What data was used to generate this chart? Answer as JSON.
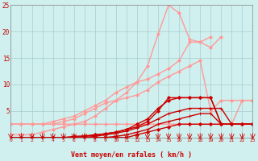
{
  "title": "",
  "xlabel": "Vent moyen/en rafales ( km/h )",
  "bg_color": "#cff0ee",
  "grid_color": "#aacccc",
  "xlim": [
    0,
    23
  ],
  "ylim": [
    0,
    25
  ],
  "yticks": [
    5,
    10,
    15,
    20,
    25
  ],
  "xticks": [
    0,
    1,
    2,
    3,
    4,
    5,
    6,
    7,
    8,
    9,
    10,
    11,
    12,
    13,
    14,
    15,
    16,
    17,
    18,
    19,
    20,
    21,
    22,
    23
  ],
  "series": [
    {
      "x": [
        0,
        1,
        2,
        3,
        4,
        5,
        6,
        7,
        8,
        9,
        10,
        11,
        12,
        13,
        14,
        15,
        16,
        17,
        18,
        19,
        20,
        21,
        22,
        23
      ],
      "y": [
        0.5,
        0.5,
        0.5,
        1.0,
        1.5,
        2.0,
        2.5,
        3.0,
        4.0,
        5.5,
        7.0,
        8.5,
        10.5,
        13.5,
        19.5,
        25.0,
        23.5,
        18.5,
        18.0,
        19.0,
        null,
        null,
        null,
        null
      ],
      "color": "#ff9999",
      "lw": 1.0,
      "marker": "D",
      "ms": 2
    },
    {
      "x": [
        0,
        1,
        2,
        3,
        4,
        5,
        6,
        7,
        8,
        9,
        10,
        11,
        12,
        13,
        14,
        15,
        16,
        17,
        18,
        19,
        20,
        21,
        22,
        23
      ],
      "y": [
        2.5,
        2.5,
        2.5,
        2.5,
        3.0,
        3.5,
        4.0,
        5.0,
        6.0,
        7.0,
        8.5,
        9.5,
        10.5,
        11.0,
        12.0,
        13.0,
        14.5,
        18.0,
        18.0,
        17.0,
        19.0,
        null,
        null,
        null
      ],
      "color": "#ff9999",
      "lw": 1.0,
      "marker": "D",
      "ms": 2
    },
    {
      "x": [
        0,
        1,
        2,
        3,
        4,
        5,
        6,
        7,
        8,
        9,
        10,
        11,
        12,
        13,
        14,
        15,
        16,
        17,
        18,
        19,
        20,
        21,
        22,
        23
      ],
      "y": [
        2.5,
        2.5,
        2.5,
        2.5,
        2.5,
        3.0,
        3.5,
        4.5,
        5.5,
        6.5,
        7.0,
        7.5,
        8.0,
        9.0,
        10.5,
        11.5,
        12.5,
        13.5,
        14.5,
        5.0,
        7.0,
        7.0,
        7.0,
        7.0
      ],
      "color": "#ff9999",
      "lw": 1.0,
      "marker": "D",
      "ms": 2
    },
    {
      "x": [
        0,
        1,
        2,
        3,
        4,
        5,
        6,
        7,
        8,
        9,
        10,
        11,
        12,
        13,
        14,
        15,
        16,
        17,
        18,
        19,
        20,
        21,
        22,
        23
      ],
      "y": [
        2.5,
        2.5,
        2.5,
        2.5,
        2.5,
        2.5,
        2.5,
        2.5,
        2.5,
        2.5,
        2.5,
        2.5,
        2.5,
        2.5,
        2.5,
        2.5,
        2.5,
        2.5,
        2.5,
        2.5,
        2.5,
        2.5,
        7.0,
        7.0
      ],
      "color": "#ff9999",
      "lw": 1.0,
      "marker": "D",
      "ms": 2
    },
    {
      "x": [
        0,
        1,
        2,
        3,
        4,
        5,
        6,
        7,
        8,
        9,
        10,
        11,
        12,
        13,
        14,
        15,
        16,
        17,
        18,
        19,
        20,
        21,
        22,
        23
      ],
      "y": [
        0.0,
        0.0,
        0.0,
        0.0,
        0.0,
        0.0,
        0.2,
        0.3,
        0.5,
        0.7,
        1.0,
        1.5,
        2.0,
        3.0,
        5.0,
        7.5,
        7.5,
        7.5,
        7.5,
        7.5,
        2.5,
        2.5,
        2.5,
        2.5
      ],
      "color": "#cc0000",
      "lw": 1.0,
      "marker": "D",
      "ms": 2
    },
    {
      "x": [
        0,
        1,
        2,
        3,
        4,
        5,
        6,
        7,
        8,
        9,
        10,
        11,
        12,
        13,
        14,
        15,
        16,
        17,
        18,
        19,
        20,
        21,
        22,
        23
      ],
      "y": [
        0.0,
        0.0,
        0.0,
        0.0,
        0.0,
        0.0,
        0.0,
        0.2,
        0.4,
        0.7,
        1.0,
        1.5,
        2.5,
        3.5,
        5.5,
        7.0,
        7.5,
        7.5,
        7.5,
        7.5,
        2.5,
        2.5,
        2.5,
        2.5
      ],
      "color": "#cc0000",
      "lw": 1.0,
      "marker": "D",
      "ms": 2
    },
    {
      "x": [
        0,
        1,
        2,
        3,
        4,
        5,
        6,
        7,
        8,
        9,
        10,
        11,
        12,
        13,
        14,
        15,
        16,
        17,
        18,
        19,
        20,
        21,
        22,
        23
      ],
      "y": [
        0.0,
        0.0,
        0.0,
        0.0,
        0.0,
        0.0,
        0.0,
        0.0,
        0.2,
        0.5,
        0.8,
        1.2,
        1.8,
        2.5,
        3.5,
        4.5,
        5.0,
        5.5,
        5.5,
        5.5,
        5.5,
        2.5,
        2.5,
        2.5
      ],
      "color": "#cc0000",
      "lw": 1.0,
      "marker": "+",
      "ms": 3
    },
    {
      "x": [
        0,
        1,
        2,
        3,
        4,
        5,
        6,
        7,
        8,
        9,
        10,
        11,
        12,
        13,
        14,
        15,
        16,
        17,
        18,
        19,
        20,
        21,
        22,
        23
      ],
      "y": [
        0.0,
        0.0,
        0.0,
        0.0,
        0.0,
        0.0,
        0.0,
        0.0,
        0.0,
        0.0,
        0.2,
        0.5,
        1.0,
        1.5,
        2.5,
        3.0,
        3.5,
        4.0,
        4.5,
        4.5,
        2.5,
        2.5,
        2.5,
        2.5
      ],
      "color": "#cc0000",
      "lw": 1.0,
      "marker": "+",
      "ms": 3
    },
    {
      "x": [
        0,
        1,
        2,
        3,
        4,
        5,
        6,
        7,
        8,
        9,
        10,
        11,
        12,
        13,
        14,
        15,
        16,
        17,
        18,
        19,
        20,
        21,
        22,
        23
      ],
      "y": [
        0.0,
        0.0,
        0.0,
        0.0,
        0.0,
        0.0,
        0.0,
        0.0,
        0.0,
        0.0,
        0.0,
        0.0,
        0.5,
        1.0,
        1.5,
        2.0,
        2.5,
        2.5,
        2.5,
        2.5,
        2.5,
        2.5,
        2.5,
        2.5
      ],
      "color": "#cc0000",
      "lw": 1.0,
      "marker": "D",
      "ms": 2
    }
  ],
  "arrow_color": "#cc0000"
}
